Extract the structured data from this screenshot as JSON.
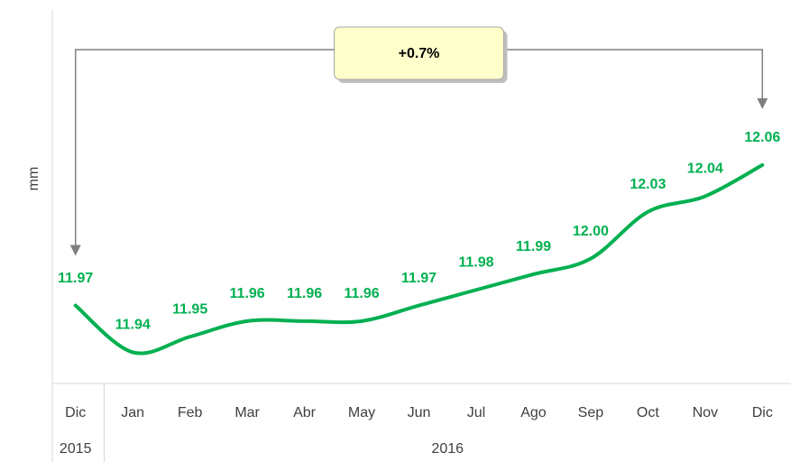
{
  "chart_data": {
    "type": "line",
    "y_label": "mm",
    "categories": [
      "Dic",
      "Jan",
      "Feb",
      "Mar",
      "Abr",
      "May",
      "Jun",
      "Jul",
      "Ago",
      "Sep",
      "Oct",
      "Nov",
      "Dic"
    ],
    "x_groups": [
      {
        "label": "2015",
        "count": 1
      },
      {
        "label": "2016",
        "count": 12
      }
    ],
    "values": [
      11.97,
      11.94,
      11.95,
      11.96,
      11.96,
      11.96,
      11.97,
      11.98,
      11.99,
      12.0,
      12.03,
      12.04,
      12.06
    ],
    "value_labels": [
      "11.97",
      "11.94",
      "11.95",
      "11.96",
      "11.96",
      "11.96",
      "11.97",
      "11.98",
      "11.99",
      "12.00",
      "12.03",
      "12.04",
      "12.06"
    ],
    "color": "#00b050",
    "ylim": [
      11.92,
      12.16
    ],
    "annotation": "+0.7%"
  }
}
